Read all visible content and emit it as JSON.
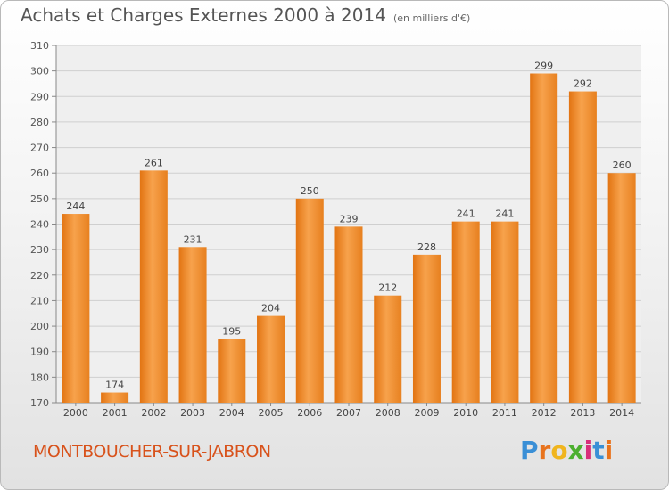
{
  "chart_data": {
    "type": "bar",
    "title": "Achats et Charges Externes 2000 à 2014",
    "subtitle": "(en milliers d'€)",
    "xlabel": "",
    "ylabel": "",
    "categories": [
      "2000",
      "2001",
      "2002",
      "2003",
      "2004",
      "2005",
      "2006",
      "2007",
      "2008",
      "2009",
      "2010",
      "2011",
      "2012",
      "2013",
      "2014"
    ],
    "values": [
      244,
      174,
      261,
      231,
      195,
      204,
      250,
      239,
      212,
      228,
      241,
      241,
      299,
      292,
      260
    ],
    "ylim": [
      170,
      310
    ],
    "yticks": [
      170,
      180,
      190,
      200,
      210,
      220,
      230,
      240,
      250,
      260,
      270,
      280,
      290,
      300,
      310
    ],
    "grid": true,
    "legend": "none",
    "bar_color": "#f08a2c"
  },
  "footer": {
    "place": "MONTBOUCHER-SUR-JABRON",
    "logo": "Proxiti"
  },
  "colors": {
    "place_text": "#d8521b",
    "logo_letters": [
      "#3a8fd6",
      "#e8731d",
      "#f0b51e",
      "#4caf2f",
      "#d92e7a",
      "#3a8fd6",
      "#e8731d"
    ]
  }
}
